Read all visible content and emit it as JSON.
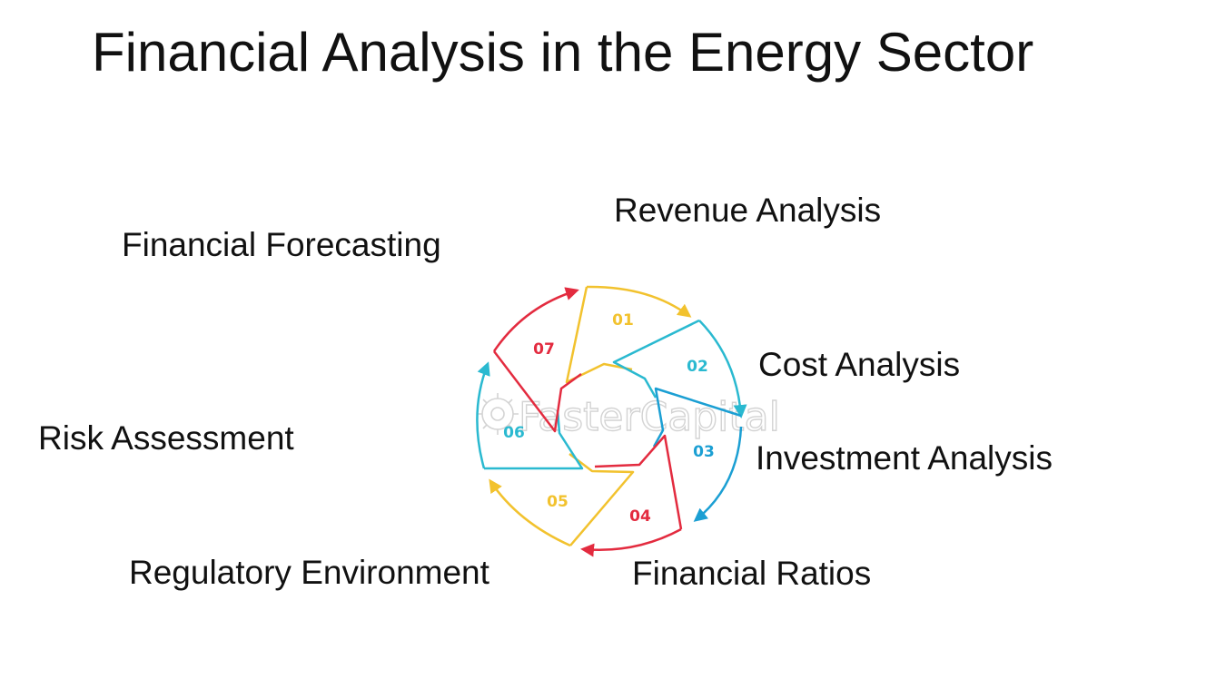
{
  "title": "Financial Analysis in the Energy Sector",
  "colors": {
    "yellow": "#f2c22e",
    "cyan": "#2ab9d0",
    "blue": "#1b9fd3",
    "red": "#e32b3f",
    "watermark": "#cfcfcf"
  },
  "watermark": "FasterCapital",
  "steps": [
    {
      "number": "01",
      "label": "Revenue Analysis",
      "color": "yellow"
    },
    {
      "number": "02",
      "label": "Cost Analysis",
      "color": "cyan"
    },
    {
      "number": "03",
      "label": "Investment Analysis",
      "color": "blue"
    },
    {
      "number": "04",
      "label": "Financial Ratios",
      "color": "red"
    },
    {
      "number": "05",
      "label": "Regulatory Environment",
      "color": "yellow"
    },
    {
      "number": "06",
      "label": "Risk Assessment",
      "color": "cyan"
    },
    {
      "number": "07",
      "label": "Financial Forecasting",
      "color": "red"
    }
  ]
}
